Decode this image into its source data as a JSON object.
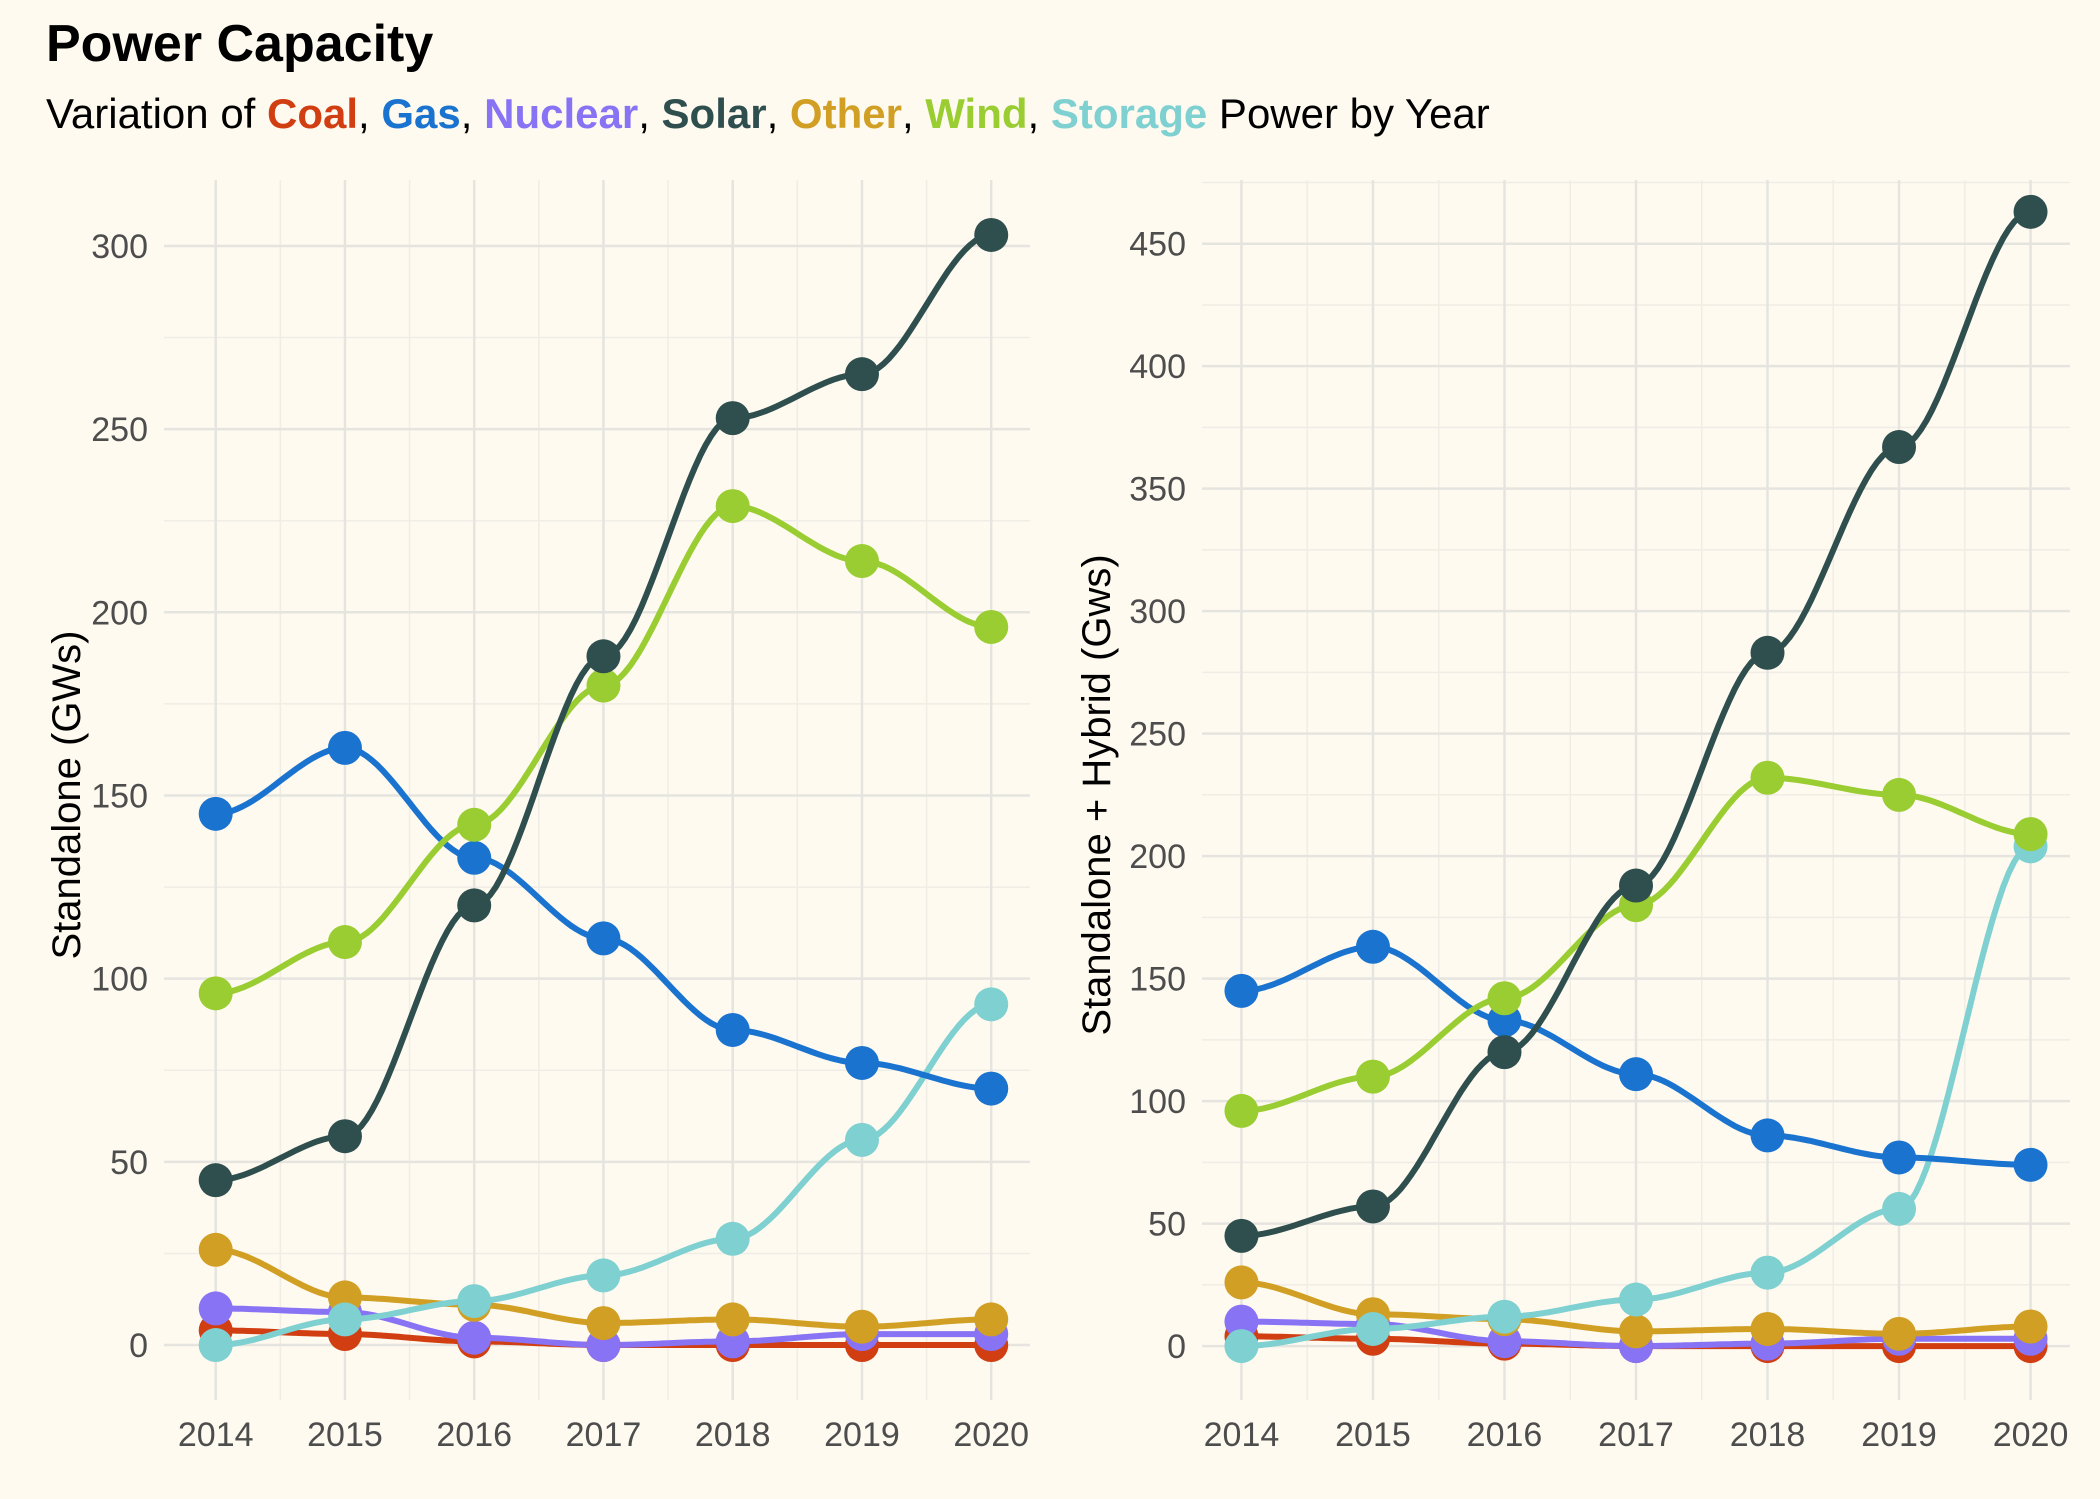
{
  "title": "Power Capacity",
  "subtitle": {
    "prefix": "Variation of ",
    "sep": ", ",
    "suffix": " Power by Year",
    "keywords": [
      {
        "text": "Coal",
        "color": "#d13e12"
      },
      {
        "text": "Gas",
        "color": "#1a73cf"
      },
      {
        "text": "Nuclear",
        "color": "#8873f5"
      },
      {
        "text": "Solar",
        "color": "#2f4f4f"
      },
      {
        "text": "Other",
        "color": "#d19f23"
      },
      {
        "text": "Wind",
        "color": "#9acd32"
      },
      {
        "text": "Storage",
        "color": "#7fd0d0"
      }
    ]
  },
  "chart_data": [
    {
      "type": "line",
      "ylabel": "Standalone (GWs)",
      "xlabel": "",
      "x": [
        2014,
        2015,
        2016,
        2017,
        2018,
        2019,
        2020
      ],
      "xlim": [
        2013.6,
        2020.3
      ],
      "ylim": [
        -15,
        318
      ],
      "yticks": [
        0,
        50,
        100,
        150,
        200,
        250,
        300
      ],
      "grid": true,
      "series": [
        {
          "name": "Coal",
          "color": "#d13e12",
          "values": [
            4,
            3,
            1,
            0,
            0,
            0,
            0
          ]
        },
        {
          "name": "Nuclear",
          "color": "#8873f5",
          "values": [
            10,
            9,
            2,
            0,
            1,
            3,
            3
          ]
        },
        {
          "name": "Other",
          "color": "#d19f23",
          "values": [
            26,
            13,
            11,
            6,
            7,
            5,
            7
          ]
        },
        {
          "name": "Storage",
          "color": "#7fd0d0",
          "values": [
            0,
            7,
            12,
            19,
            29,
            56,
            93
          ]
        },
        {
          "name": "Gas",
          "color": "#1a73cf",
          "values": [
            145,
            163,
            133,
            111,
            86,
            77,
            70
          ]
        },
        {
          "name": "Wind",
          "color": "#9acd32",
          "values": [
            96,
            110,
            142,
            180,
            229,
            214,
            196
          ]
        },
        {
          "name": "Solar",
          "color": "#2f4f4f",
          "values": [
            45,
            57,
            120,
            188,
            253,
            265,
            303
          ]
        }
      ]
    },
    {
      "type": "line",
      "ylabel": "Standalone + Hybrid (Gws)",
      "xlabel": "",
      "x": [
        2014,
        2015,
        2016,
        2017,
        2018,
        2019,
        2020
      ],
      "xlim": [
        2013.7,
        2020.3
      ],
      "ylim": [
        -22,
        476
      ],
      "yticks": [
        0,
        50,
        100,
        150,
        200,
        250,
        300,
        350,
        400,
        450
      ],
      "grid": true,
      "series": [
        {
          "name": "Coal",
          "color": "#d13e12",
          "values": [
            4,
            3,
            1,
            0,
            0,
            0,
            0
          ]
        },
        {
          "name": "Nuclear",
          "color": "#8873f5",
          "values": [
            10,
            9,
            2,
            0,
            1,
            3,
            3
          ]
        },
        {
          "name": "Other",
          "color": "#d19f23",
          "values": [
            26,
            13,
            11,
            6,
            7,
            5,
            8
          ]
        },
        {
          "name": "Storage",
          "color": "#7fd0d0",
          "values": [
            0,
            7,
            12,
            19,
            30,
            56,
            204
          ]
        },
        {
          "name": "Gas",
          "color": "#1a73cf",
          "values": [
            145,
            163,
            133,
            111,
            86,
            77,
            74
          ]
        },
        {
          "name": "Wind",
          "color": "#9acd32",
          "values": [
            96,
            110,
            142,
            180,
            232,
            225,
            209
          ]
        },
        {
          "name": "Solar",
          "color": "#2f4f4f",
          "values": [
            45,
            57,
            120,
            188,
            283,
            367,
            463
          ]
        }
      ]
    }
  ]
}
